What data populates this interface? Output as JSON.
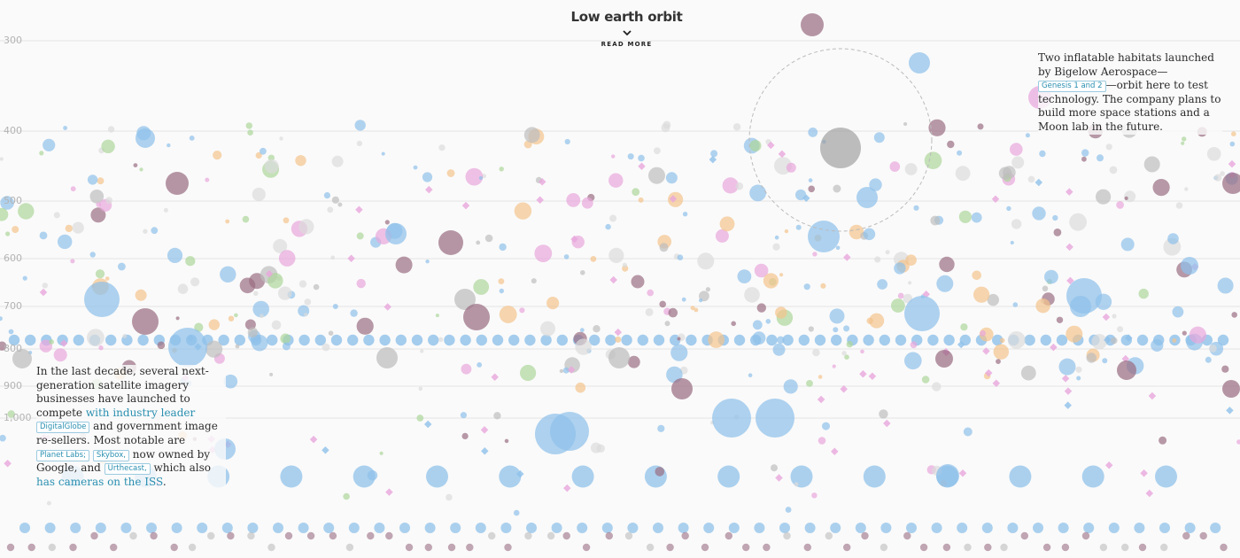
{
  "header": {
    "title": "Low earth orbit",
    "read_more": "READ MORE"
  },
  "annotations": {
    "bigelow": {
      "before": "Two inflatable habitats launched by Bigelow Aerospace—",
      "tag": "Genesis 1 and 2",
      "after": "—orbit here to test technology. The company plans to build more space stations and a Moon lab in the future."
    },
    "imagery": {
      "p1": "In the last decade, several next-generation satellite imagery businesses have launched to compete ",
      "link1": "with industry leader",
      "tag1": "DigitalGlobe",
      "p2": " and government image re-sellers. Most notable are ",
      "tag2": "Planet Labs;",
      "tag3": "Skybox,",
      "p3": " now owned by Google, and ",
      "tag4": "Urthecast,",
      "p4": " which also ",
      "link2": "has cameras on the ISS",
      "p5": "."
    }
  },
  "chart_data": {
    "type": "scatter",
    "title": "Low earth orbit",
    "xlabel": "",
    "ylabel": "",
    "y_ticks": [
      300,
      400,
      500,
      600,
      700,
      800,
      900,
      "1,000"
    ],
    "y_direction": "down",
    "grid": true,
    "colors": {
      "blue": "#8fc1ea",
      "pink": "#e8a6dc",
      "purple": "#9a6d82",
      "gray": "#bdbdbd",
      "orange": "#f3c38c",
      "green": "#acd59a",
      "lightgray": "#dcdcdc"
    },
    "highlight": {
      "label": "Genesis 1 and 2",
      "altitude_km": 423
    }
  }
}
